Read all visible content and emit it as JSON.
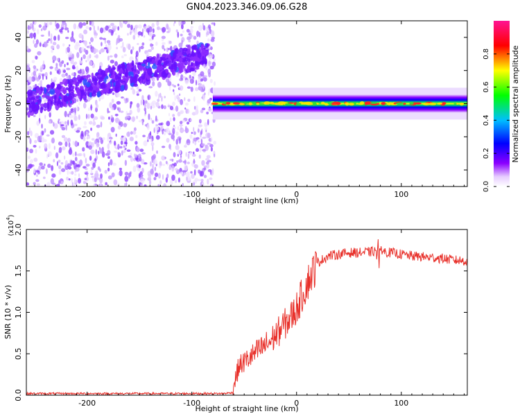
{
  "title": "GN04.2023.346.09.06.G28",
  "chart_data": [
    {
      "type": "heatmap",
      "xlabel": "Height of straight line (km)",
      "ylabel": "Frequency (Hz)",
      "xlim": [
        -258,
        163
      ],
      "ylim": [
        -50,
        50
      ],
      "xticks": [
        -200,
        -100,
        0,
        100
      ],
      "xtick_labels": [
        "-200",
        "-100",
        "0",
        "100"
      ],
      "yticks": [
        -40,
        -20,
        0,
        20,
        40
      ],
      "ytick_labels": [
        "-40",
        "-20",
        "0",
        "20",
        "40"
      ],
      "colorbar": {
        "label": "Normalized spectral amplitude",
        "range": [
          0,
          1
        ],
        "ticks": [
          0.0,
          0.2,
          0.4,
          0.6,
          0.8
        ],
        "tick_labels": [
          "0.0",
          "0.2",
          "0.4",
          "0.6",
          "0.8"
        ],
        "colors": [
          "#ffffff",
          "#8b00ff",
          "#0000ff",
          "#00bfff",
          "#00ff00",
          "#ffff00",
          "#ff0000",
          "#ff1493"
        ]
      },
      "regions": [
        {
          "name": "scattered noise",
          "x_range": [
            -258,
            -78
          ],
          "freq_range": [
            -50,
            50
          ],
          "amplitude": 0.02
        },
        {
          "name": "rising track",
          "x_range": [
            -258,
            -85
          ],
          "freq_start": 0,
          "freq_end": 30,
          "amplitude": 0.15
        },
        {
          "name": "steady signal",
          "x_range": [
            -80,
            163
          ],
          "freq_center": 0,
          "freq_halfwidth": 3,
          "amplitude": 0.95
        }
      ],
      "grid": false
    },
    {
      "type": "line",
      "xlabel": "Height of straight line (km)",
      "ylabel": "SNR (10 * v/v)",
      "y_multiplier_label": "(x10",
      "y_multiplier_exponent": "4",
      "xlim": [
        -258,
        163
      ],
      "ylim": [
        0,
        2.0
      ],
      "xticks": [
        -200,
        -100,
        0,
        100
      ],
      "xtick_labels": [
        "-200",
        "-100",
        "0",
        "100"
      ],
      "yticks": [
        0,
        0.5,
        1.0,
        1.5,
        2.0
      ],
      "ytick_labels": [
        "0.0",
        "0.5",
        "1.0",
        "1.5",
        "2.0"
      ],
      "line_color": "#e8302a",
      "x": [
        -258,
        -200,
        -150,
        -100,
        -70,
        -62,
        -55,
        -45,
        -35,
        -25,
        -15,
        -5,
        0,
        10,
        20,
        30,
        40,
        50,
        60,
        70,
        80,
        90,
        100,
        110,
        120,
        130,
        140,
        150,
        163
      ],
      "y": [
        0.02,
        0.02,
        0.02,
        0.02,
        0.02,
        0.03,
        0.35,
        0.45,
        0.55,
        0.65,
        0.8,
        0.95,
        1.05,
        1.35,
        1.6,
        1.68,
        1.7,
        1.72,
        1.72,
        1.73,
        1.74,
        1.72,
        1.7,
        1.68,
        1.67,
        1.66,
        1.65,
        1.63,
        1.62
      ],
      "grid": false
    }
  ]
}
